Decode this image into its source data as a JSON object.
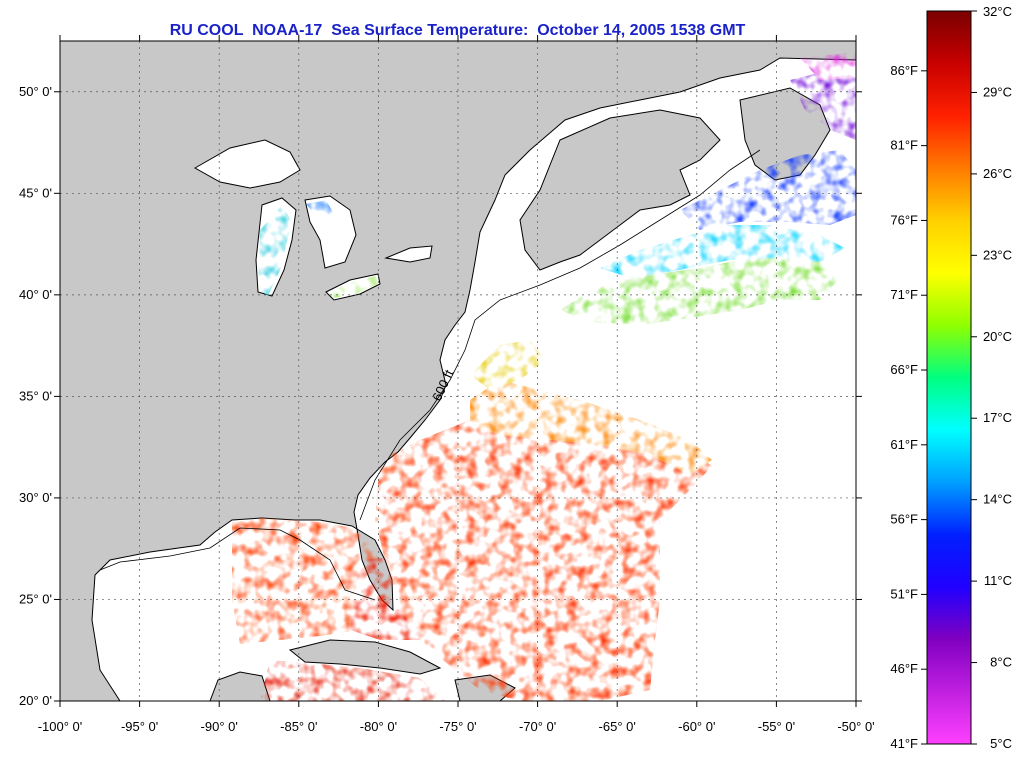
{
  "title": "RU COOL  NOAA-17  Sea Surface Temperature:  October 14, 2005 1538 GMT",
  "map": {
    "lon_range": [
      -100,
      -50
    ],
    "lat_range": [
      20,
      52.5
    ],
    "lat_labels": [
      "50° 0'",
      "45° 0'",
      "40° 0'",
      "35° 0'",
      "30° 0'",
      "25° 0'",
      "20° 0'"
    ],
    "lat_values": [
      50,
      45,
      40,
      35,
      30,
      25,
      20
    ],
    "lon_labels": [
      "-100° 0'",
      "-95° 0'",
      "-90° 0'",
      "-85° 0'",
      "-80° 0'",
      "-75° 0'",
      "-70° 0'",
      "-65° 0'",
      "-60° 0'",
      "-55° 0'",
      "-50° 0'"
    ],
    "lon_values": [
      -100,
      -95,
      -90,
      -85,
      -80,
      -75,
      -70,
      -65,
      -60,
      -55,
      -50
    ],
    "grid": true,
    "contour_label": "600 ft",
    "colors": {
      "land": "#c8c8c8",
      "ocean_no_data": "#ffffff",
      "title": "#1a22c8"
    }
  },
  "colorbar": {
    "range_c": [
      5,
      32
    ],
    "range_f": [
      41,
      90
    ],
    "celsius_labels": [
      "32°C",
      "29°C",
      "26°C",
      "23°C",
      "20°C",
      "17°C",
      "14°C",
      "11°C",
      "8°C",
      "5°C"
    ],
    "celsius_values": [
      32,
      29,
      26,
      23,
      20,
      17,
      14,
      11,
      8,
      5
    ],
    "fahrenheit_labels": [
      "86°F",
      "81°F",
      "76°F",
      "71°F",
      "66°F",
      "61°F",
      "56°F",
      "51°F",
      "46°F",
      "41°F"
    ],
    "fahrenheit_values": [
      86,
      81,
      76,
      71,
      66,
      61,
      56,
      51,
      46,
      41
    ],
    "gradient_colors": [
      "#7a0000",
      "#c80000",
      "#ff2000",
      "#ff7a00",
      "#ffd000",
      "#ffff00",
      "#90ff00",
      "#00ff80",
      "#00ffff",
      "#00a0ff",
      "#0020ff",
      "#2000ff",
      "#8000c0",
      "#c020e0",
      "#ff40ff"
    ]
  }
}
